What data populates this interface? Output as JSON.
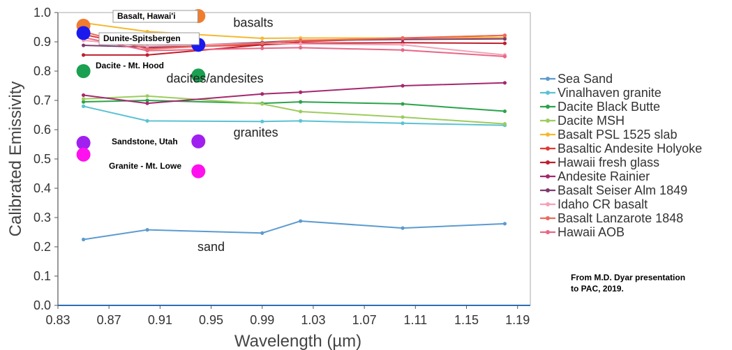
{
  "chart_data": {
    "type": "line",
    "xlabel": "Wavelength (µm)",
    "ylabel": "Calibrated Emissivity",
    "xlim": [
      0.83,
      1.2
    ],
    "ylim": [
      0.0,
      1.0
    ],
    "x_ticks": [
      "0.83",
      "0.87",
      "0.91",
      "0.95",
      "0.99",
      "1.03",
      "1.07",
      "1.11",
      "1.15",
      "1.19"
    ],
    "y_ticks": [
      "0.0",
      "0.1",
      "0.2",
      "0.3",
      "0.4",
      "0.5",
      "0.6",
      "0.7",
      "0.8",
      "0.9",
      "1.0"
    ],
    "grid": false,
    "legend_position": "right",
    "series": [
      {
        "name": "Sea Sand",
        "color": "#5b9bd0",
        "x": [
          0.85,
          0.9,
          0.99,
          1.02,
          1.1,
          1.18
        ],
        "y": [
          0.225,
          0.258,
          0.247,
          0.288,
          0.264,
          0.279
        ]
      },
      {
        "name": "Vinalhaven granite",
        "color": "#5ac2d3",
        "x": [
          0.85,
          0.9,
          0.99,
          1.02,
          1.1,
          1.18
        ],
        "y": [
          0.68,
          0.63,
          0.628,
          0.63,
          0.622,
          0.615
        ]
      },
      {
        "name": "Dacite Black Butte",
        "color": "#2aa34a",
        "x": [
          0.85,
          0.9,
          0.99,
          1.02,
          1.1,
          1.18
        ],
        "y": [
          0.695,
          0.7,
          0.69,
          0.695,
          0.688,
          0.663
        ]
      },
      {
        "name": "Dacite MSH",
        "color": "#9ccc5d",
        "x": [
          0.85,
          0.9,
          0.99,
          1.02,
          1.1,
          1.18
        ],
        "y": [
          0.705,
          0.715,
          0.688,
          0.662,
          0.643,
          0.62
        ]
      },
      {
        "name": "Basalt PSL 1525 slab",
        "color": "#f4b92f",
        "x": [
          0.85,
          0.9,
          0.99,
          1.02,
          1.1,
          1.18
        ],
        "y": [
          0.965,
          0.935,
          0.912,
          0.913,
          0.913,
          0.915
        ]
      },
      {
        "name": "Basaltic Andesite Holyoke",
        "color": "#e03a32",
        "x": [
          0.85,
          0.9,
          0.99,
          1.02,
          1.1,
          1.18
        ],
        "y": [
          0.925,
          0.88,
          0.89,
          0.9,
          0.913,
          0.922
        ]
      },
      {
        "name": "Hawaii fresh glass",
        "color": "#bf1f2d",
        "x": [
          0.85,
          0.9,
          0.99,
          1.02,
          1.1,
          1.18
        ],
        "y": [
          0.855,
          0.855,
          0.89,
          0.895,
          0.897,
          0.895
        ]
      },
      {
        "name": "Andesite Rainier",
        "color": "#a4286e",
        "x": [
          0.85,
          0.9,
          0.99,
          1.02,
          1.1,
          1.18
        ],
        "y": [
          0.718,
          0.69,
          0.722,
          0.728,
          0.75,
          0.76
        ]
      },
      {
        "name": "Basalt Seiser Alm 1849",
        "color": "#7d3b6e",
        "x": [
          0.85,
          0.9,
          0.99,
          1.02,
          1.1,
          1.18
        ],
        "y": [
          0.888,
          0.882,
          0.898,
          0.905,
          0.908,
          0.91
        ]
      },
      {
        "name": "Idaho CR basalt",
        "color": "#f4a1b8",
        "x": [
          0.85,
          0.9,
          0.99,
          1.02,
          1.1,
          1.18
        ],
        "y": [
          0.905,
          0.885,
          0.895,
          0.893,
          0.89,
          0.855
        ]
      },
      {
        "name": "Basalt Lanzarote 1848",
        "color": "#ec6a5e",
        "x": [
          0.85,
          0.9,
          0.99,
          1.02,
          1.1,
          1.18
        ],
        "y": [
          0.935,
          0.875,
          0.895,
          0.905,
          0.912,
          0.922
        ]
      },
      {
        "name": "Hawaii AOB",
        "color": "#e86686",
        "x": [
          0.85,
          0.9,
          0.99,
          1.02,
          1.1,
          1.18
        ],
        "y": [
          0.915,
          0.87,
          0.878,
          0.88,
          0.872,
          0.85
        ]
      }
    ],
    "markers": [
      {
        "label": "Basalt, Hawai'i",
        "color": "#f07c2f",
        "x": 0.85,
        "y": 0.955,
        "x2": 0.94,
        "y2": 0.988
      },
      {
        "label": "Dunite-Spitsbergen",
        "color": "#1a1aee",
        "x": 0.85,
        "y": 0.93,
        "x2": 0.94,
        "y2": 0.89
      },
      {
        "label": "Dacite - Mt. Hood",
        "color": "#1aa050",
        "x": 0.85,
        "y": 0.8,
        "x2": 0.94,
        "y2": 0.785
      },
      {
        "label": "Sandstone, Utah",
        "color": "#a020f0",
        "x": 0.85,
        "y": 0.555,
        "x2": 0.94,
        "y2": 0.56
      },
      {
        "label": "Granite - Mt. Lowe",
        "color": "#ff10ee",
        "x": 0.85,
        "y": 0.515,
        "x2": 0.94,
        "y2": 0.458
      }
    ],
    "regions": [
      {
        "text": "basalts",
        "x": 0.983,
        "y": 0.965
      },
      {
        "text": "dacites/andesites",
        "x": 0.953,
        "y": 0.775
      },
      {
        "text": "granites",
        "x": 0.985,
        "y": 0.59
      },
      {
        "text": "sand",
        "x": 0.95,
        "y": 0.2
      }
    ],
    "credit": [
      "From M.D. Dyar presentation",
      "to PAC, 2019."
    ]
  }
}
